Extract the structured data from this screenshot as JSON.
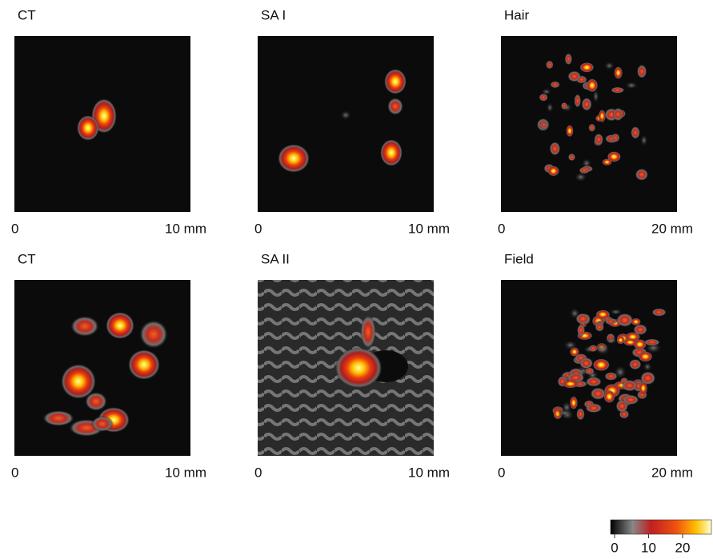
{
  "panels": [
    {
      "title": "CT",
      "start_label": "0",
      "end_label": "10 mm"
    },
    {
      "title": "SA I",
      "start_label": "0",
      "end_label": "10 mm"
    },
    {
      "title": "Hair",
      "start_label": "0",
      "end_label": "20 mm"
    },
    {
      "title": "CT",
      "start_label": "0",
      "end_label": "10 mm"
    },
    {
      "title": "SA II",
      "start_label": "0",
      "end_label": "10 mm"
    },
    {
      "title": "Field",
      "start_label": "0",
      "end_label": "20 mm"
    }
  ],
  "colorbar": {
    "ticks": [
      0,
      10,
      20
    ]
  }
}
